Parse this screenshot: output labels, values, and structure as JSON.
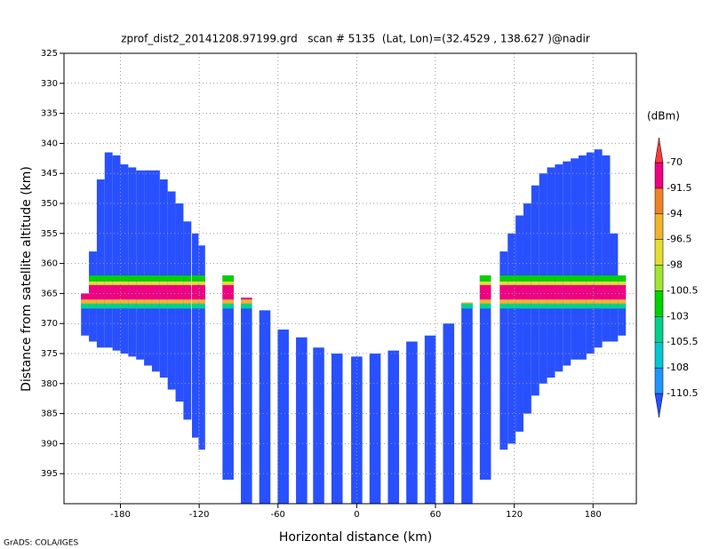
{
  "chart_data": {
    "type": "profile",
    "title": "zprof_dist2_20141208.97199.grd   scan # 5135  (Lat, Lon)=(32.4529 , 138.627 )@nadir",
    "xlabel": "Horizontal distance (km)",
    "ylabel": "Distance from satellite altitude (km)",
    "footer": "GrADS: COLA/IGES",
    "colorbar_label": "(dBm)",
    "xlim": [
      -223,
      213
    ],
    "ylim": [
      400,
      325
    ],
    "xticks": [
      -180,
      -120,
      -60,
      0,
      60,
      120,
      180
    ],
    "yticks": [
      325,
      330,
      335,
      340,
      345,
      350,
      355,
      360,
      365,
      370,
      375,
      380,
      385,
      390,
      395
    ],
    "grid": true,
    "levels": [
      -110.5,
      -108,
      -105.5,
      -103,
      -100.5,
      -98,
      -96.5,
      -94,
      -91.5,
      -70
    ],
    "colors": [
      "#2850ff",
      "#1e96ff",
      "#00c8d2",
      "#00d28c",
      "#00d200",
      "#a0e632",
      "#e6dc32",
      "#f0b42d",
      "#f08228",
      "#f00082",
      "#fa3c3c"
    ],
    "base_value": -112,
    "x": [
      -207,
      -201,
      -195,
      -189,
      -183,
      -177,
      -171,
      -165,
      -159,
      -153,
      -147,
      -141,
      -135,
      -129,
      -123,
      -118,
      -98,
      -84,
      -70,
      -56,
      -42,
      -29,
      -15,
      0,
      14,
      28,
      42,
      56,
      70,
      84,
      98,
      112,
      118,
      124,
      130,
      136,
      142,
      148,
      154,
      160,
      166,
      172,
      178,
      184,
      190,
      196,
      202
    ],
    "top": [
      365,
      358,
      346,
      341.5,
      342,
      343.5,
      344,
      344.5,
      344.5,
      344.5,
      346,
      348,
      350,
      353,
      355,
      357,
      362,
      365.7,
      367.8,
      371,
      372.3,
      374,
      375,
      375.5,
      375,
      374.5,
      373,
      372,
      370,
      366.5,
      362,
      358,
      355,
      352,
      350,
      347,
      345,
      344,
      343.5,
      343,
      342.5,
      342,
      341.5,
      341,
      342,
      355,
      362
    ],
    "bottom": [
      372,
      373,
      374,
      374,
      374.5,
      375,
      375.5,
      376,
      377,
      378,
      379,
      381,
      383,
      386,
      389,
      391,
      396,
      400,
      400,
      400,
      400,
      400,
      400,
      400,
      400,
      400,
      400,
      400,
      400,
      400,
      396,
      391,
      390,
      388,
      385,
      382,
      380,
      379,
      378,
      377,
      376,
      376,
      375,
      374,
      373,
      373,
      372
    ],
    "bands": [
      {
        "from": 362,
        "to": 363,
        "value": -103
      },
      {
        "from": 363,
        "to": 363.6,
        "value": -98
      },
      {
        "from": 363.6,
        "to": 366,
        "value": -91.5
      },
      {
        "from": 366,
        "to": 366.7,
        "value": -96.5
      },
      {
        "from": 366.7,
        "to": 367.5,
        "value": -105.5
      }
    ]
  }
}
